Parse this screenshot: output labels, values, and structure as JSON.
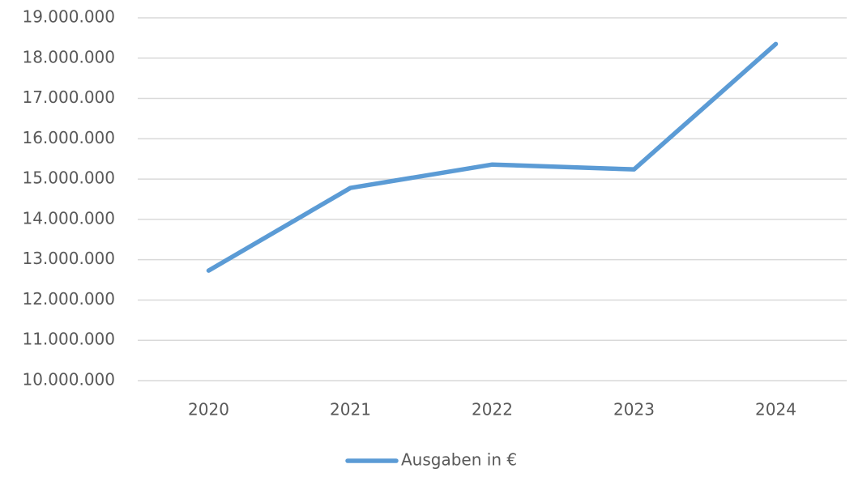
{
  "chart_data": {
    "type": "line",
    "categories": [
      "2020",
      "2021",
      "2022",
      "2023",
      "2024"
    ],
    "series": [
      {
        "name": "Ausgaben in €",
        "color": "#5b9bd5",
        "values": [
          12730000,
          14780000,
          15360000,
          15240000,
          18350000
        ]
      }
    ],
    "ylim": [
      10000000,
      19000000
    ],
    "yticks": [
      {
        "value": 10000000,
        "label": "10.000.000"
      },
      {
        "value": 11000000,
        "label": "11.000.000"
      },
      {
        "value": 12000000,
        "label": "12.000.000"
      },
      {
        "value": 13000000,
        "label": "13.000.000"
      },
      {
        "value": 14000000,
        "label": "14.000.000"
      },
      {
        "value": 15000000,
        "label": "15.000.000"
      },
      {
        "value": 16000000,
        "label": "16.000.000"
      },
      {
        "value": 17000000,
        "label": "17.000.000"
      },
      {
        "value": 18000000,
        "label": "18.000.000"
      },
      {
        "value": 19000000,
        "label": "19.000.000"
      }
    ],
    "grid": true,
    "legend": "bottom"
  }
}
